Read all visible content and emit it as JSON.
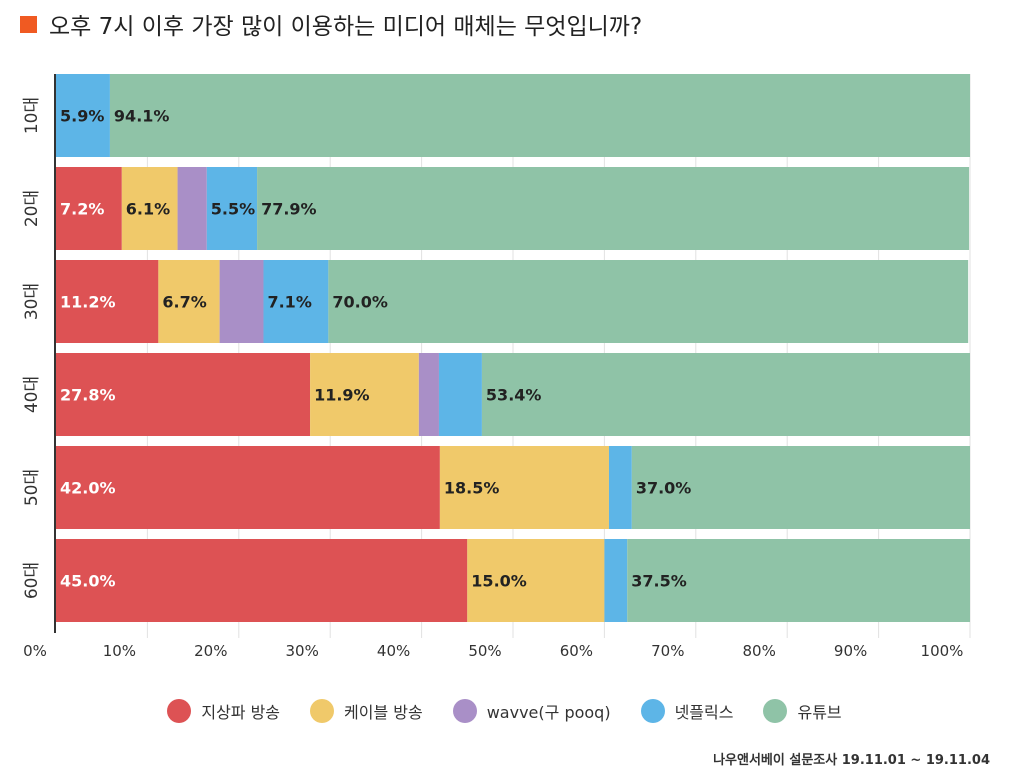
{
  "header": {
    "title": "오후 7시 이후 가장 많이 이용하는 미디어 매체는 무엇입니까?",
    "accent_color": "#F05A22"
  },
  "source": "나우앤서베이 설문조사 19.11.01 ~ 19.11.04",
  "chart_data": {
    "type": "bar",
    "orientation": "horizontal",
    "stacked": true,
    "title": "오후 7시 이후 가장 많이 이용하는 미디어 매체는 무엇입니까?",
    "categories": [
      "10대",
      "20대",
      "30대",
      "40대",
      "50대",
      "60대"
    ],
    "xlim": [
      0,
      100
    ],
    "x_ticks": [
      "0%",
      "10%",
      "20%",
      "30%",
      "40%",
      "50%",
      "60%",
      "70%",
      "80%",
      "90%",
      "100%"
    ],
    "grid": true,
    "legend_position": "bottom",
    "series": [
      {
        "name": "지상파 방송",
        "color": "#DD5254",
        "label_color": "#ffffff",
        "values": [
          0,
          7.2,
          11.2,
          27.8,
          42.0,
          45.0
        ],
        "labels": [
          "",
          "7.2%",
          "11.2%",
          "27.8%",
          "42.0%",
          "45.0%"
        ]
      },
      {
        "name": "케이블 방송",
        "color": "#F0C96A",
        "label_color": "#222222",
        "values": [
          0,
          6.1,
          6.7,
          11.9,
          18.5,
          15.0
        ],
        "labels": [
          "",
          "6.1%",
          "6.7%",
          "11.9%",
          "18.5%",
          "15.0%"
        ]
      },
      {
        "name": "wavve(구 pooq)",
        "color": "#A98FC7",
        "label_color": "#222222",
        "values": [
          0,
          3.2,
          4.8,
          2.2,
          0,
          0
        ],
        "labels": [
          "",
          "",
          "",
          "",
          "",
          ""
        ]
      },
      {
        "name": "넷플릭스",
        "color": "#5DB5E7",
        "label_color": "#222222",
        "values": [
          5.9,
          5.5,
          7.1,
          4.7,
          2.5,
          2.5
        ],
        "labels": [
          "5.9%",
          "5.5%",
          "7.1%",
          "",
          "",
          ""
        ]
      },
      {
        "name": "유튜브",
        "color": "#8FC3A7",
        "label_color": "#222222",
        "values": [
          94.1,
          77.9,
          70.0,
          53.4,
          37.0,
          37.5
        ],
        "labels": [
          "94.1%",
          "77.9%",
          "70.0%",
          "53.4%",
          "37.0%",
          "37.5%"
        ]
      }
    ]
  }
}
